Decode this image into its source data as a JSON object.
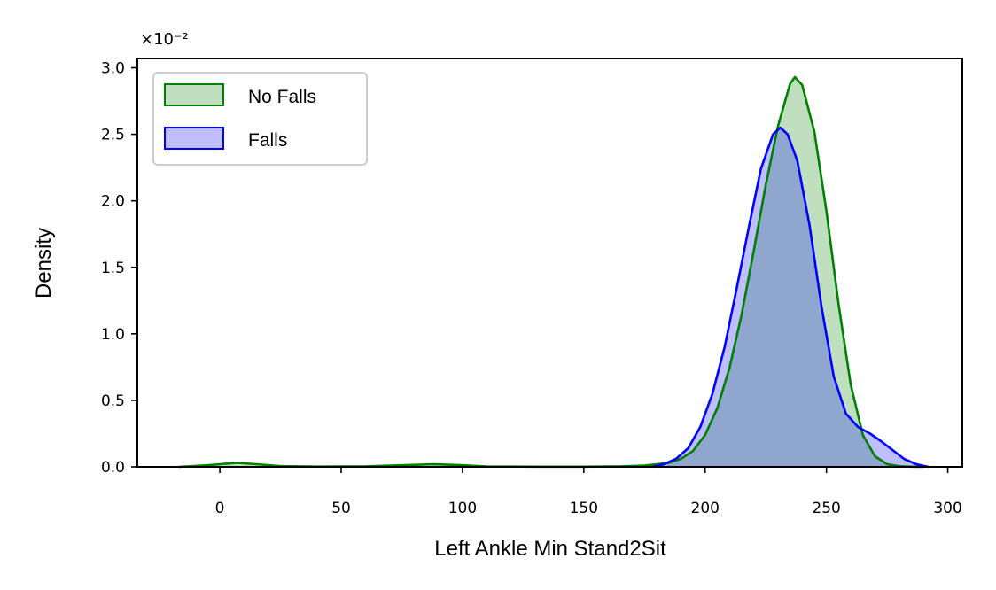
{
  "chart_data": {
    "type": "area",
    "xlabel": "Left Ankle Min Stand2Sit",
    "ylabel": "Density",
    "y_offset_label": "×10⁻²",
    "xlim": [
      -34,
      306
    ],
    "ylim": [
      0,
      3.07
    ],
    "x_ticks": [
      0,
      50,
      100,
      150,
      200,
      250,
      300
    ],
    "x_tick_labels": [
      "0",
      "50",
      "100",
      "150",
      "200",
      "250",
      "300"
    ],
    "y_ticks": [
      0,
      0.5,
      1.0,
      1.5,
      2.0,
      2.5,
      3.0
    ],
    "y_tick_labels": [
      "0.0",
      "0.5",
      "1.0",
      "1.5",
      "2.0",
      "2.5",
      "3.0"
    ],
    "grid": false,
    "legend_position": "top-left",
    "series": [
      {
        "name": "No Falls",
        "color": "#008000",
        "fill": "#008000",
        "fill_opacity": 0.25,
        "x": [
          -17,
          -5,
          0,
          7,
          15,
          25,
          40,
          60,
          75,
          88,
          100,
          110,
          130,
          150,
          165,
          175,
          185,
          190,
          195,
          200,
          205,
          210,
          215,
          220,
          225,
          230,
          235,
          237,
          240,
          245,
          250,
          255,
          260,
          265,
          270,
          275,
          280,
          285,
          290
        ],
        "y": [
          0.0,
          0.012,
          0.02,
          0.03,
          0.02,
          0.005,
          0.002,
          0.004,
          0.012,
          0.02,
          0.012,
          0.003,
          0.001,
          0.001,
          0.004,
          0.01,
          0.03,
          0.06,
          0.12,
          0.24,
          0.44,
          0.74,
          1.14,
          1.62,
          2.12,
          2.56,
          2.88,
          2.93,
          2.87,
          2.52,
          1.92,
          1.22,
          0.62,
          0.24,
          0.08,
          0.02,
          0.005,
          0.001,
          0.0
        ]
      },
      {
        "name": "Falls",
        "color": "#0000ff",
        "fill": "#0000ff",
        "fill_opacity": 0.25,
        "x": [
          178,
          183,
          188,
          193,
          198,
          203,
          208,
          213,
          218,
          223,
          228,
          231,
          234,
          238,
          243,
          248,
          253,
          258,
          263,
          268,
          272,
          277,
          282,
          287,
          292
        ],
        "y": [
          0.0,
          0.02,
          0.06,
          0.14,
          0.3,
          0.55,
          0.9,
          1.34,
          1.8,
          2.24,
          2.5,
          2.55,
          2.5,
          2.3,
          1.82,
          1.2,
          0.68,
          0.4,
          0.3,
          0.25,
          0.2,
          0.13,
          0.06,
          0.02,
          0.0
        ]
      }
    ]
  }
}
